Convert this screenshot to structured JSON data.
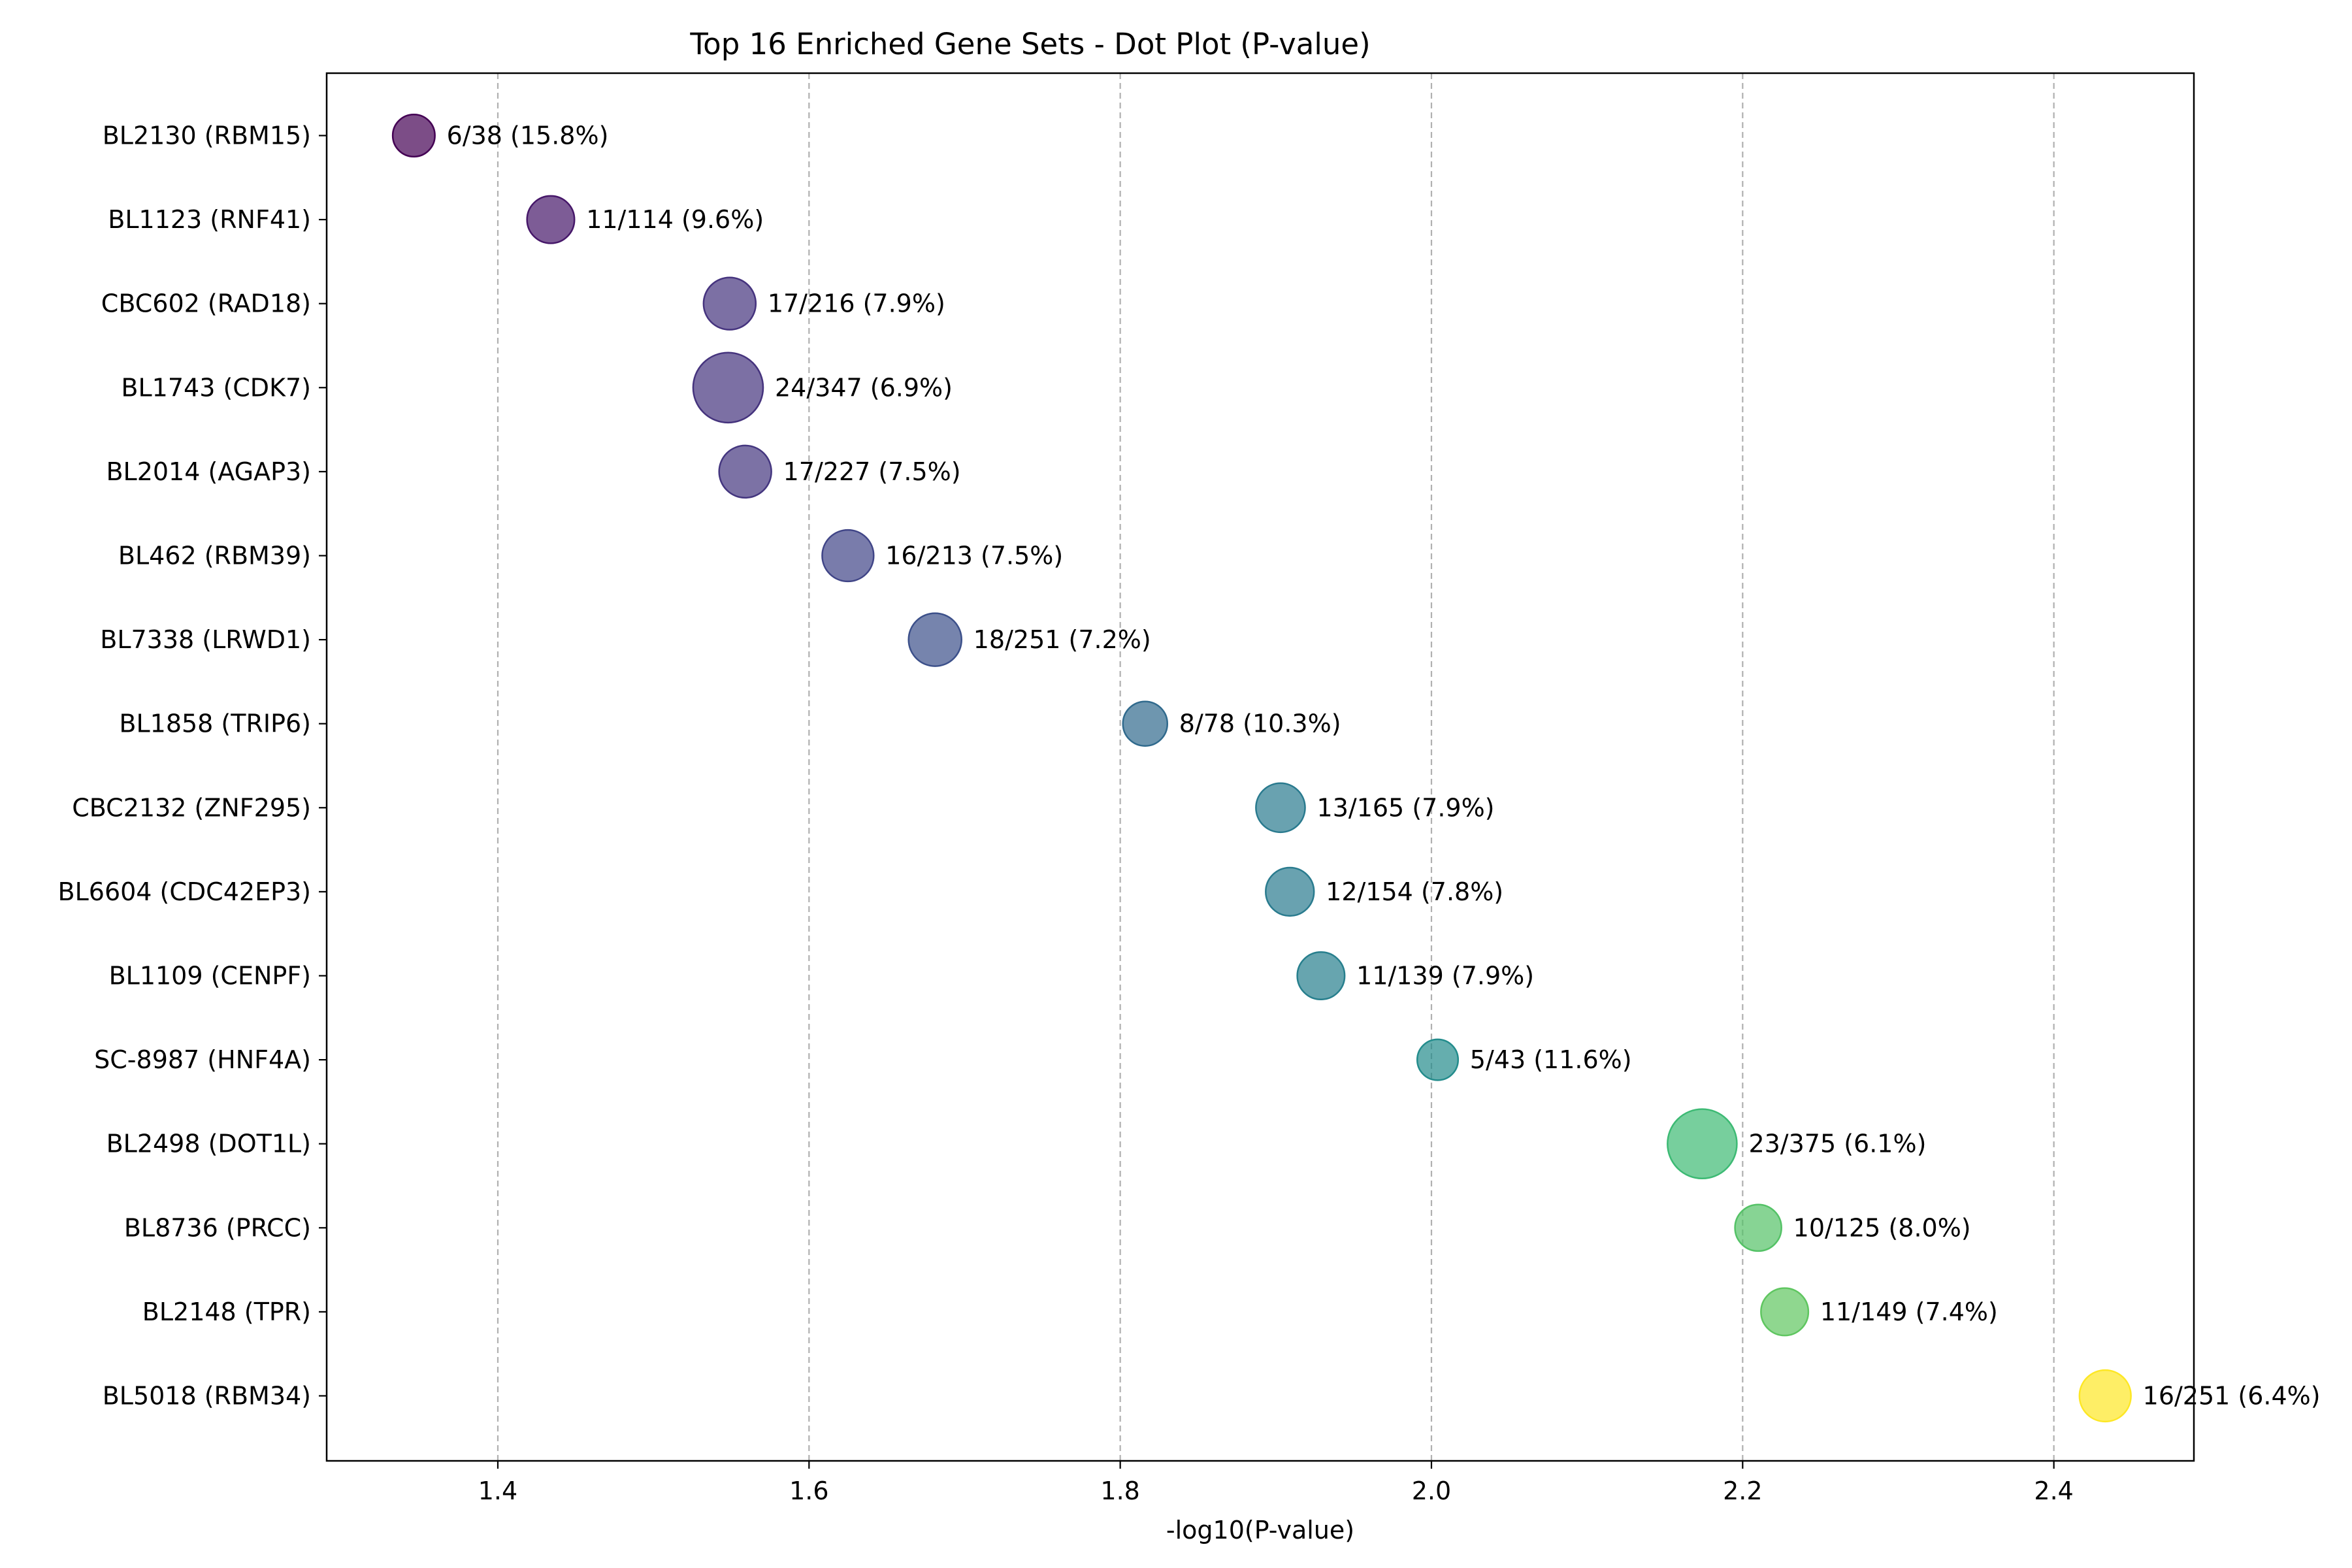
{
  "chart_data": {
    "type": "scatter",
    "title": "Top 16 Enriched Gene Sets - Dot Plot (P-value)",
    "xlabel": "-log10(P-value)",
    "ylabel": "",
    "xlim": [
      1.29,
      2.49
    ],
    "xticks": [
      "1.4",
      "1.6",
      "1.8",
      "2.0",
      "2.2",
      "2.4"
    ],
    "xtick_values": [
      1.4,
      1.6,
      1.8,
      2.0,
      2.2,
      2.4
    ],
    "grid": "x-dashed",
    "colormap": "viridis",
    "categories": [
      "BL2130 (RBM15)",
      "BL1123 (RNF41)",
      "CBC602 (RAD18)",
      "BL1743 (CDK7)",
      "BL2014 (AGAP3)",
      "BL462 (RBM39)",
      "BL7338 (LRWD1)",
      "BL1858 (TRIP6)",
      "CBC2132 (ZNF295)",
      "BL6604 (CDC42EP3)",
      "BL1109 (CENPF)",
      "SC-8987 (HNF4A)",
      "BL2498 (DOT1L)",
      "BL8736 (PRCC)",
      "BL2148 (TPR)",
      "BL5018 (RBM34)"
    ],
    "points": [
      {
        "x": 1.346,
        "overlap": 6,
        "size": 38,
        "label": "6/38 (15.8%)"
      },
      {
        "x": 1.434,
        "overlap": 11,
        "size": 114,
        "label": "11/114 (9.6%)"
      },
      {
        "x": 1.549,
        "overlap": 17,
        "size": 216,
        "label": "17/216 (7.9%)"
      },
      {
        "x": 1.548,
        "overlap": 24,
        "size": 347,
        "label": "24/347 (6.9%)"
      },
      {
        "x": 1.559,
        "overlap": 17,
        "size": 227,
        "label": "17/227 (7.5%)"
      },
      {
        "x": 1.625,
        "overlap": 16,
        "size": 213,
        "label": "16/213 (7.5%)"
      },
      {
        "x": 1.681,
        "overlap": 18,
        "size": 251,
        "label": "18/251 (7.2%)"
      },
      {
        "x": 1.816,
        "overlap": 8,
        "size": 78,
        "label": "8/78 (10.3%)"
      },
      {
        "x": 1.903,
        "overlap": 13,
        "size": 165,
        "label": "13/165 (7.9%)"
      },
      {
        "x": 1.909,
        "overlap": 12,
        "size": 154,
        "label": "12/154 (7.8%)"
      },
      {
        "x": 1.929,
        "overlap": 11,
        "size": 139,
        "label": "11/139 (7.9%)"
      },
      {
        "x": 2.004,
        "overlap": 5,
        "size": 43,
        "label": "5/43 (11.6%)"
      },
      {
        "x": 2.174,
        "overlap": 23,
        "size": 375,
        "label": "23/375 (6.1%)"
      },
      {
        "x": 2.21,
        "overlap": 10,
        "size": 125,
        "label": "10/125 (8.0%)"
      },
      {
        "x": 2.227,
        "overlap": 11,
        "size": 149,
        "label": "11/149 (7.4%)"
      },
      {
        "x": 2.433,
        "overlap": 16,
        "size": 251,
        "label": "16/251 (6.4%)"
      }
    ]
  }
}
